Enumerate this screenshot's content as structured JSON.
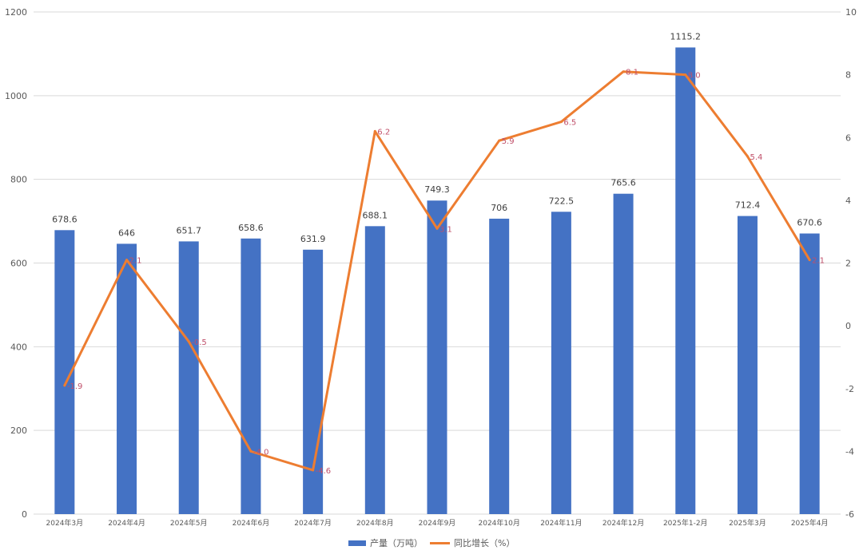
{
  "chart_data": {
    "type": "bar",
    "categories": [
      "2024年3月",
      "2024年4月",
      "2024年5月",
      "2024年6月",
      "2024年7月",
      "2024年8月",
      "2024年9月",
      "2024年10月",
      "2024年11月",
      "2024年12月",
      "2025年1-2月",
      "2025年3月",
      "2025年4月"
    ],
    "series": [
      {
        "name": "产量（万吨）",
        "type": "bar",
        "axis": "left",
        "color": "#4472c4",
        "values": [
          678.6,
          646,
          651.7,
          658.6,
          631.9,
          688.1,
          749.3,
          706,
          722.5,
          765.6,
          1115.2,
          712.4,
          670.6
        ],
        "labels": [
          "678.6",
          "646",
          "651.7",
          "658.6",
          "631.9",
          "688.1",
          "749.3",
          "706",
          "722.5",
          "765.6",
          "1115.2",
          "712.4",
          "670.6"
        ]
      },
      {
        "name": "同比增长（%）",
        "type": "line",
        "axis": "right",
        "color": "#ed7d31",
        "values": [
          -1.9,
          2.1,
          -0.5,
          -4.0,
          -4.6,
          6.2,
          3.1,
          5.9,
          6.5,
          8.1,
          8.0,
          5.4,
          2.1
        ],
        "labels": [
          "-1.9",
          "2.1",
          "-0.5",
          "-4.0",
          "-4.6",
          "6.2",
          "3.1",
          "5.9",
          "6.5",
          "8.1",
          "8.0",
          "5.4",
          "2.1"
        ]
      }
    ],
    "y_left": {
      "lim": [
        0,
        1200
      ],
      "ticks": [
        "0",
        "200",
        "400",
        "600",
        "800",
        "1000",
        "1200"
      ]
    },
    "y_right": {
      "lim": [
        -6,
        10
      ],
      "ticks": [
        "-6",
        "-4",
        "-2",
        "0",
        "2",
        "4",
        "6",
        "8",
        "10"
      ]
    },
    "grid": true,
    "legend_position": "bottom"
  }
}
